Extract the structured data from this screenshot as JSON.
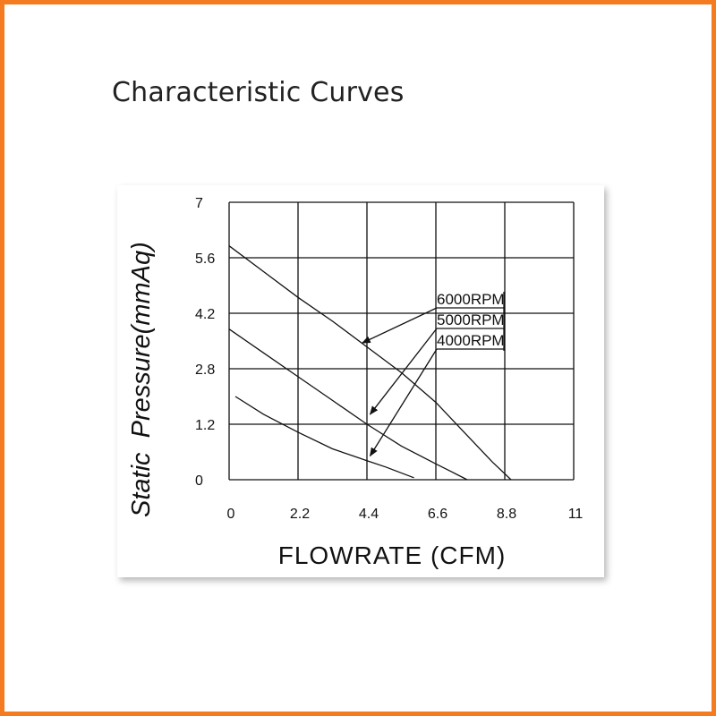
{
  "page": {
    "title": "Characteristic Curves",
    "frame_color": "#f57b20"
  },
  "chart_data": {
    "type": "line",
    "title": "",
    "xlabel": "FLOWRATE (CFM)",
    "ylabel": "Static  Pressure(mmAq)",
    "xlim": [
      0,
      11
    ],
    "ylim": [
      0,
      7
    ],
    "x_ticks": [
      0,
      2.2,
      4.4,
      6.6,
      8.8,
      11
    ],
    "x_tick_labels": [
      "0",
      "2.2",
      "4.4",
      "6.6",
      "8.8",
      "11"
    ],
    "y_ticks": [
      0,
      1.2,
      2.8,
      4.2,
      5.6,
      7
    ],
    "y_tick_labels": [
      "0",
      "1.2",
      "2.8",
      "4.2",
      "5.6",
      "7"
    ],
    "grid": true,
    "series": [
      {
        "name": "6000RPM",
        "x": [
          0,
          1.1,
          2.2,
          3.3,
          4.4,
          5.5,
          6.6,
          7.2,
          7.8,
          8.4,
          9.0
        ],
        "y": [
          5.9,
          5.25,
          4.6,
          4.0,
          3.35,
          2.7,
          1.95,
          1.45,
          0.95,
          0.45,
          0
        ]
      },
      {
        "name": "5000RPM",
        "x": [
          0,
          1.1,
          2.2,
          3.3,
          4.4,
          5.5,
          6.6,
          7.1,
          7.6
        ],
        "y": [
          3.8,
          3.2,
          2.6,
          2.0,
          1.4,
          0.85,
          0.4,
          0.2,
          0
        ]
      },
      {
        "name": "4000RPM",
        "x": [
          0.2,
          1.1,
          2.2,
          3.3,
          4.4,
          5.0,
          5.9
        ],
        "y": [
          2.1,
          1.65,
          1.2,
          0.78,
          0.48,
          0.32,
          0.05
        ]
      }
    ],
    "annotations": [
      {
        "text": "6000RPM",
        "series": "6000RPM",
        "arrow_to": [
          4.25,
          3.45
        ]
      },
      {
        "text": "5000RPM",
        "series": "5000RPM",
        "arrow_to": [
          4.5,
          1.65
        ]
      },
      {
        "text": "4000RPM",
        "series": "4000RPM",
        "arrow_to": [
          4.5,
          0.6
        ]
      }
    ]
  }
}
